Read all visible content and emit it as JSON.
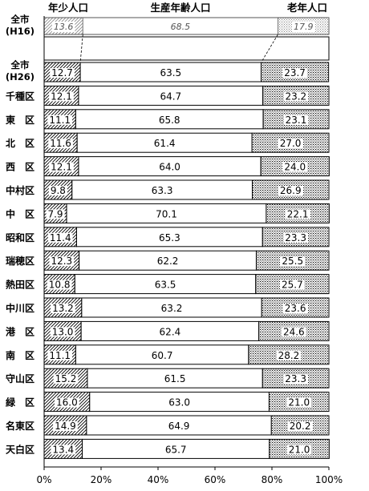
{
  "chart_data": {
    "type": "bar",
    "stacked": true,
    "orientation": "horizontal",
    "series": [
      {
        "name": "年少人口",
        "pattern": "diagonal-hatch",
        "color": "#000000"
      },
      {
        "name": "生産年齢人口",
        "pattern": "none",
        "color": "#ffffff"
      },
      {
        "name": "老年人口",
        "pattern": "crosshatch",
        "color": "#000000"
      }
    ],
    "reference": {
      "label": "全市",
      "label2": "(H16)",
      "values": [
        13.6,
        68.5,
        17.9
      ]
    },
    "categories": [
      {
        "label": "全市",
        "label2": "(H26)",
        "values": [
          12.7,
          63.5,
          23.7
        ]
      },
      {
        "label": "千種区",
        "values": [
          12.1,
          64.7,
          23.2
        ]
      },
      {
        "label": "東　区",
        "values": [
          11.1,
          65.8,
          23.1
        ]
      },
      {
        "label": "北　区",
        "values": [
          11.6,
          61.4,
          27.0
        ]
      },
      {
        "label": "西　区",
        "values": [
          12.1,
          64.0,
          24.0
        ]
      },
      {
        "label": "中村区",
        "values": [
          9.8,
          63.3,
          26.9
        ]
      },
      {
        "label": "中　区",
        "values": [
          7.9,
          70.1,
          22.1
        ]
      },
      {
        "label": "昭和区",
        "values": [
          11.4,
          65.3,
          23.3
        ]
      },
      {
        "label": "瑞穂区",
        "values": [
          12.3,
          62.2,
          25.5
        ]
      },
      {
        "label": "熱田区",
        "values": [
          10.8,
          63.5,
          25.7
        ]
      },
      {
        "label": "中川区",
        "values": [
          13.2,
          63.2,
          23.6
        ]
      },
      {
        "label": "港　区",
        "values": [
          13.0,
          62.4,
          24.6
        ]
      },
      {
        "label": "南　区",
        "values": [
          11.1,
          60.7,
          28.2
        ]
      },
      {
        "label": "守山区",
        "values": [
          15.2,
          61.5,
          23.3
        ]
      },
      {
        "label": "緑　区",
        "values": [
          16.0,
          63.0,
          21.0
        ]
      },
      {
        "label": "名東区",
        "values": [
          14.9,
          64.9,
          20.2
        ]
      },
      {
        "label": "天白区",
        "values": [
          13.4,
          65.7,
          21.0
        ]
      }
    ],
    "x_ticks": [
      "0%",
      "20%",
      "40%",
      "60%",
      "80%",
      "100%"
    ],
    "xlim": [
      0,
      100
    ],
    "grid": false,
    "legend": "top"
  }
}
